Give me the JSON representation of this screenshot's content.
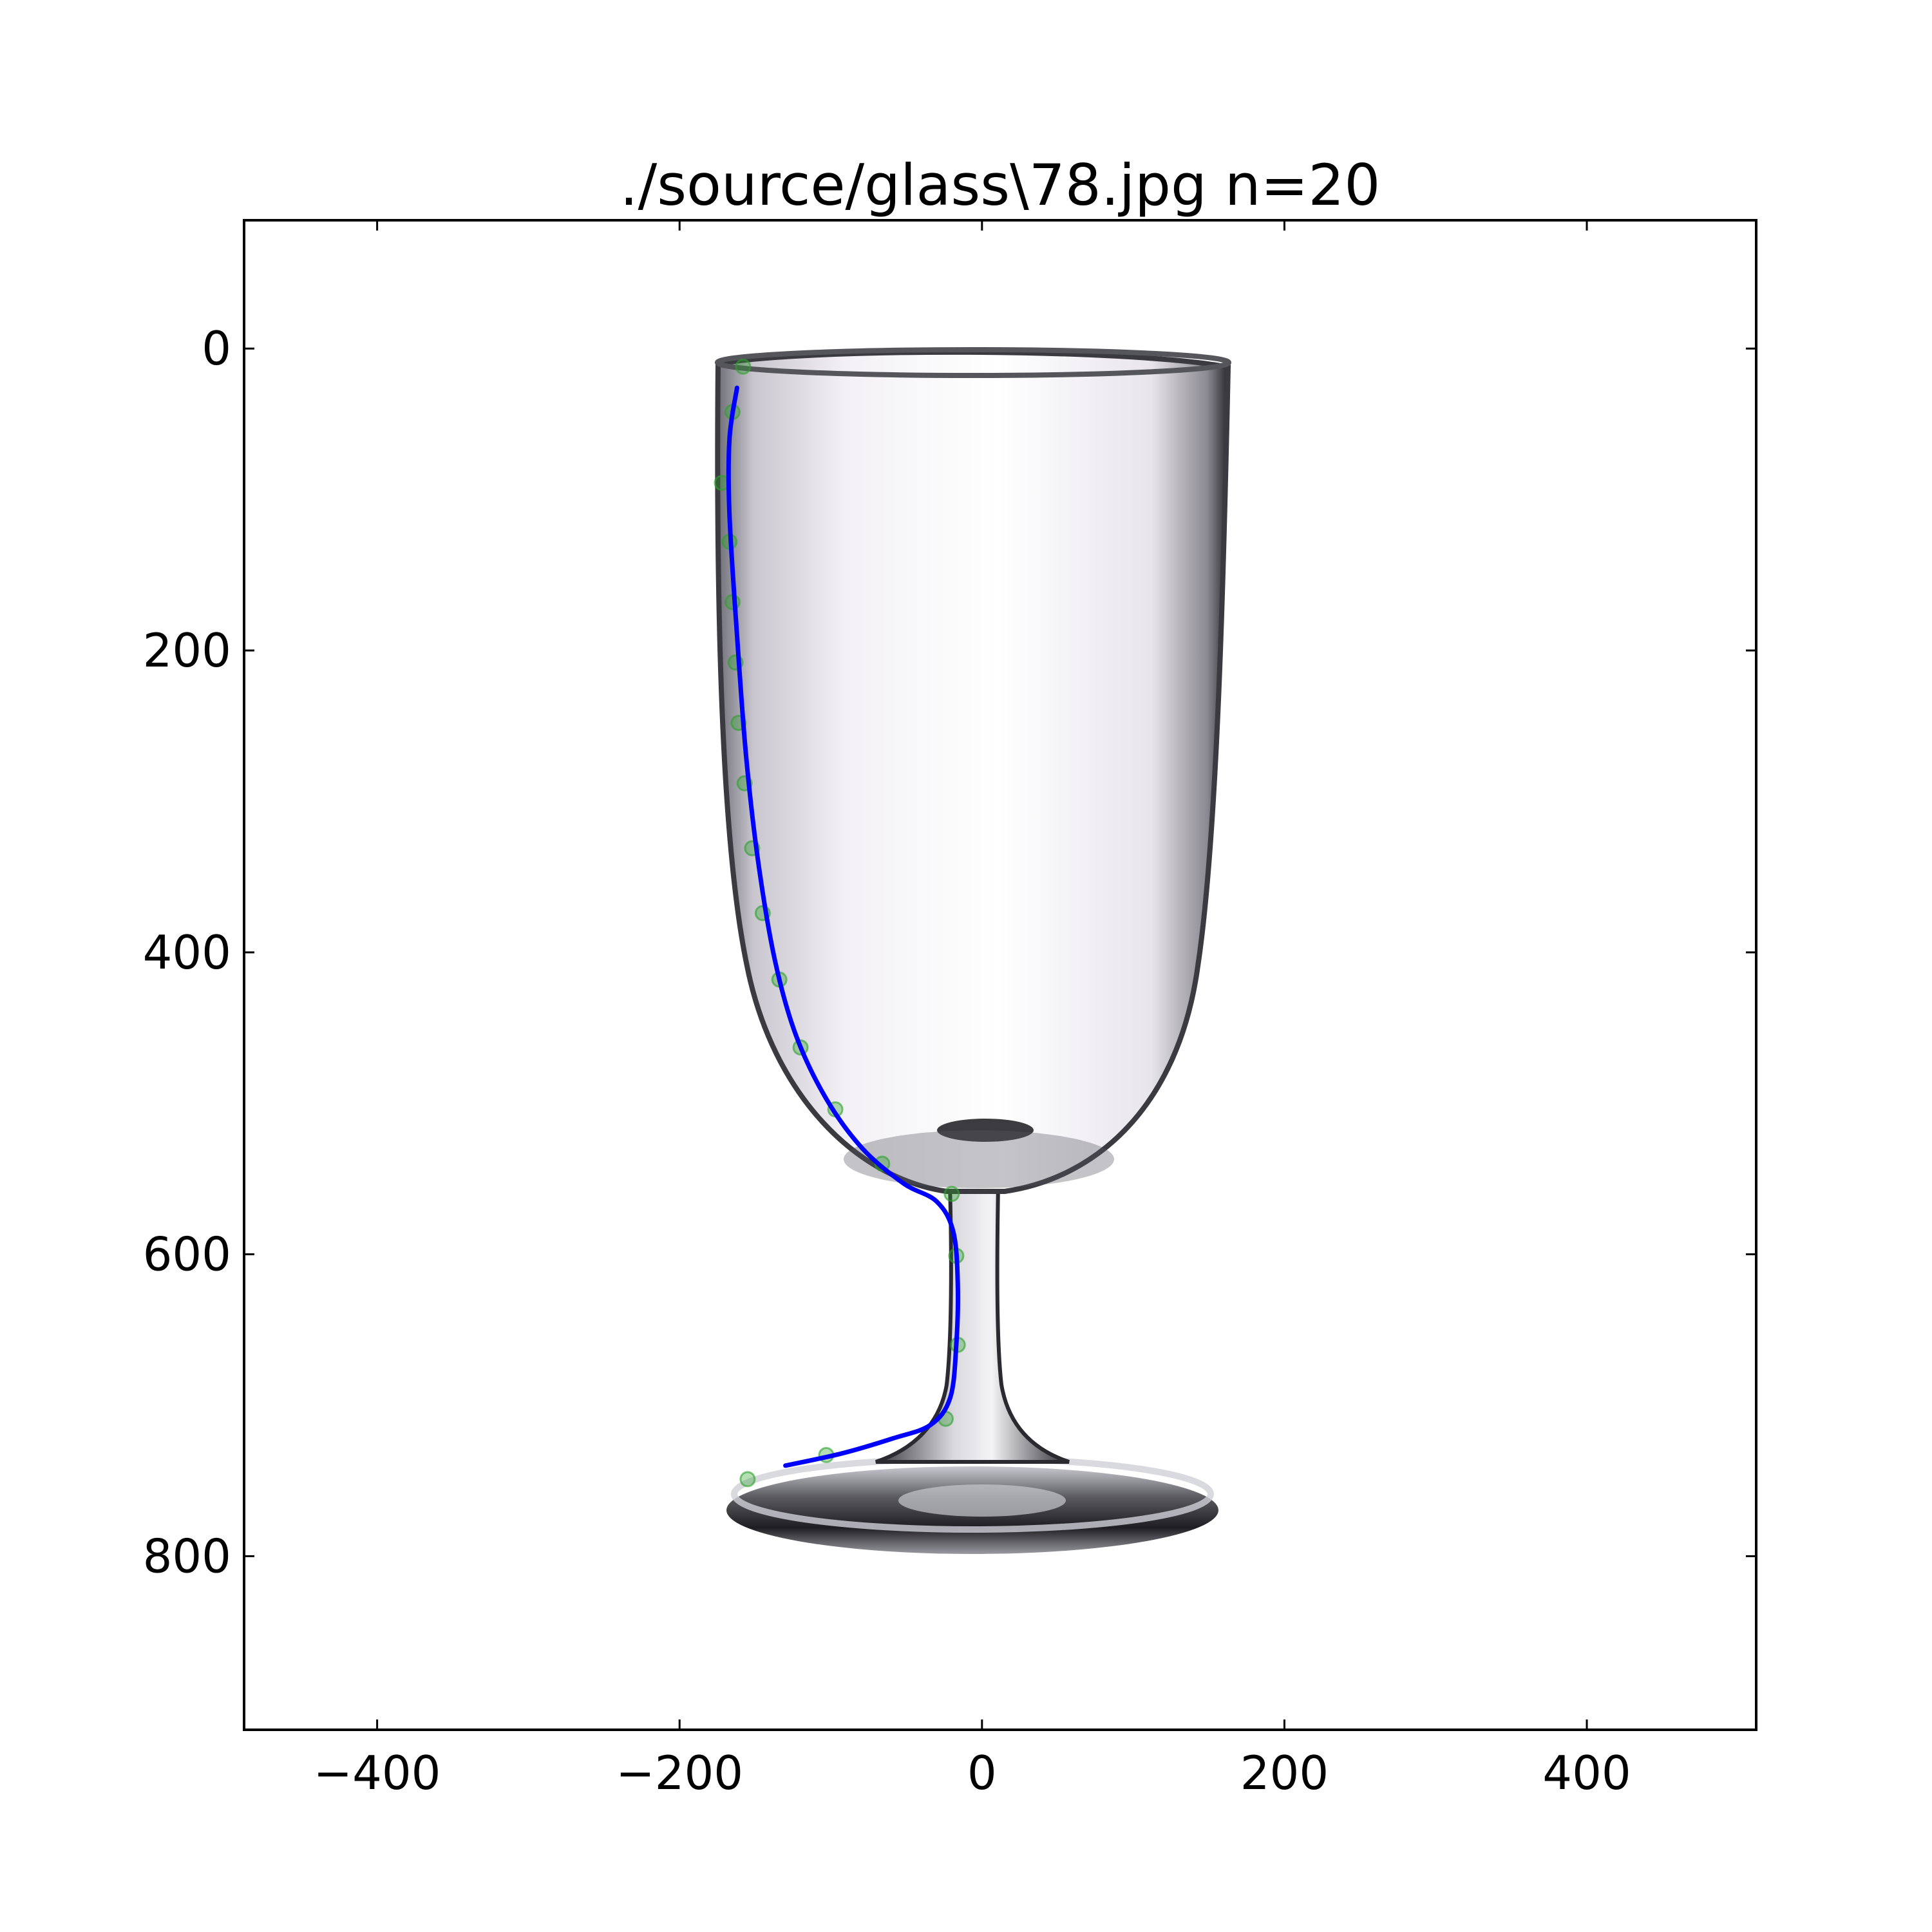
{
  "chart_data": {
    "type": "scatter",
    "title": "./source/glass\\78.jpg n=20",
    "xlabel": "",
    "ylabel": "",
    "xlim": [
      -488,
      512
    ],
    "ylim": [
      -85,
      915
    ],
    "y_inverted": true,
    "grid": false,
    "legend": "none",
    "x_ticks": [
      -400,
      -200,
      0,
      200,
      400
    ],
    "y_ticks": [
      0,
      200,
      400,
      600,
      800
    ],
    "x_tick_labels": [
      "−400",
      "−200",
      "0",
      "200",
      "400"
    ],
    "y_tick_labels": [
      "0",
      "200",
      "400",
      "600",
      "800"
    ],
    "background_image": "glass-photo",
    "series": [
      {
        "kind": "points",
        "color": "#2ca02c",
        "opacity": 0.35,
        "x": [
          -158,
          -165,
          -172,
          -167,
          -165,
          -163,
          -161,
          -157,
          -152,
          -145,
          -134,
          -120,
          -97,
          -66,
          -20,
          -17,
          -16,
          -24,
          -103,
          -155
        ],
        "y": [
          12,
          42,
          89,
          128,
          168,
          208,
          248,
          288,
          331,
          374,
          418,
          463,
          504,
          540,
          560,
          601,
          660,
          709,
          733,
          749
        ]
      },
      {
        "kind": "line",
        "color": "#0000ff",
        "x": [
          -162,
          -167,
          -167,
          -162,
          -156,
          -148,
          -137,
          -123,
          -103,
          -79,
          -52,
          -30,
          -19,
          -16,
          -17,
          -21,
          -34,
          -59,
          -93,
          -130
        ],
        "y": [
          26,
          60,
          110,
          190,
          270,
          340,
          405,
          455,
          497,
          530,
          553,
          565,
          585,
          620,
          660,
          695,
          713,
          722,
          732,
          740
        ]
      }
    ]
  }
}
